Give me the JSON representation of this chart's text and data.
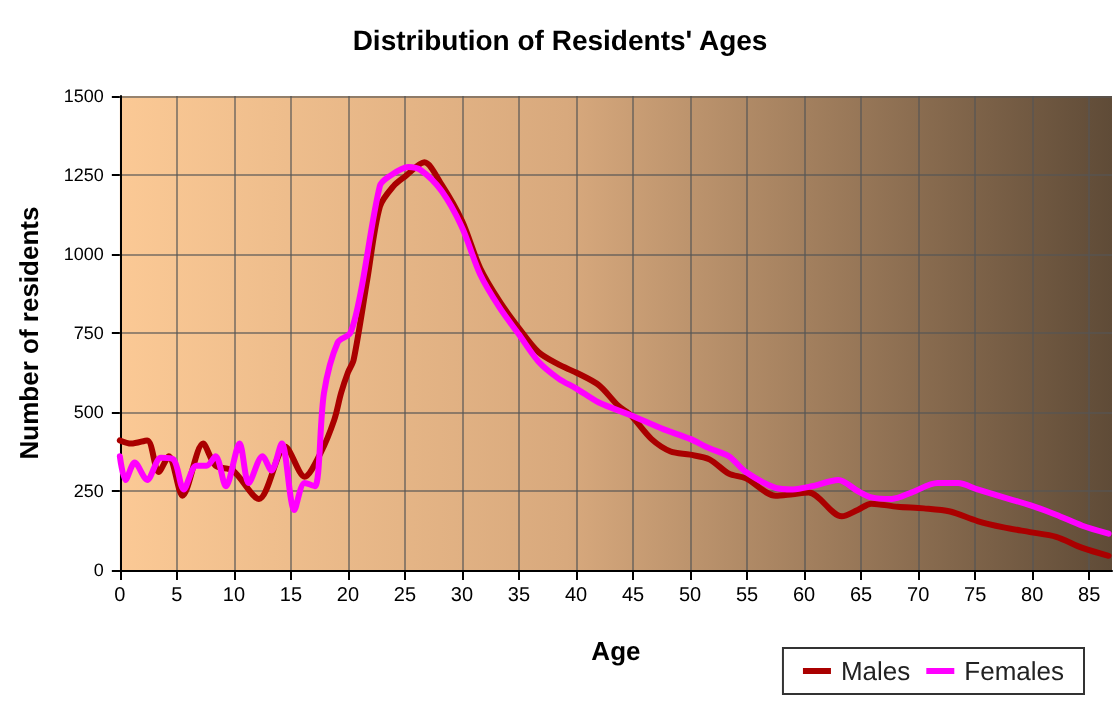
{
  "chart_data": {
    "type": "line",
    "title": "Distribution of Residents' Ages",
    "xlabel": "Age",
    "ylabel": "Number of residents",
    "xlim": [
      0,
      87
    ],
    "xticks": [
      0,
      5,
      10,
      15,
      20,
      25,
      30,
      35,
      40,
      45,
      50,
      55,
      60,
      65,
      70,
      75,
      80,
      85
    ],
    "ylim": [
      0,
      1500
    ],
    "yticks": [
      0,
      250,
      500,
      750,
      1000,
      1250,
      1500
    ],
    "grid": true,
    "legend": "bottom right",
    "marker": "none",
    "line_style": "solid",
    "series": [
      {
        "name": "Males",
        "color": "#aa0000",
        "x": [
          0,
          1,
          2.4,
          3.4,
          4.3,
          5.5,
          7.3,
          8.4,
          9.9,
          12.2,
          14.5,
          16.2,
          17.6,
          18.8,
          19.4,
          20,
          20.5,
          21.7,
          22.8,
          24,
          25,
          26.7,
          28.2,
          30,
          31.6,
          33.3,
          35,
          36.7,
          38.5,
          40,
          42,
          43.7,
          44.8,
          46.6,
          48.3,
          50,
          51.7,
          53.4,
          54.9,
          57.5,
          59,
          60.4,
          63.3,
          64.7,
          65.9,
          68.2,
          70.5,
          72.8,
          75.2,
          77.5,
          79.8,
          82.1,
          84.4,
          86.7
        ],
        "values": [
          410,
          400,
          410,
          310,
          360,
          235,
          400,
          330,
          315,
          225,
          390,
          295,
          370,
          475,
          560,
          625,
          665,
          920,
          1150,
          1215,
          1245,
          1290,
          1220,
          1105,
          955,
          850,
          765,
          690,
          650,
          625,
          585,
          520,
          490,
          415,
          375,
          365,
          350,
          305,
          290,
          235,
          240,
          245,
          170,
          190,
          210,
          200,
          195,
          185,
          155,
          135,
          120,
          105,
          70,
          45
        ]
      },
      {
        "name": "Females",
        "color": "#ff00ff",
        "x": [
          0,
          0.5,
          1.3,
          2.4,
          3.6,
          4.7,
          5.6,
          6.7,
          7.6,
          8.4,
          9.3,
          10.5,
          11.3,
          12.5,
          13.3,
          14.2,
          15.3,
          16.2,
          17.1,
          17.9,
          19.1,
          20.2,
          21.1,
          22.8,
          23.6,
          25.3,
          26.4,
          28.2,
          30,
          31.6,
          33.3,
          35,
          36.7,
          38.5,
          40,
          42,
          44.8,
          47.7,
          50,
          51.7,
          53.4,
          54.9,
          57.5,
          59,
          60.7,
          63,
          64.7,
          65.9,
          67.7,
          69.4,
          71.7,
          73.5,
          75.2,
          77.5,
          79.8,
          82.1,
          84.4,
          86.7
        ],
        "values": [
          360,
          285,
          340,
          285,
          355,
          350,
          255,
          330,
          330,
          360,
          265,
          400,
          275,
          360,
          315,
          400,
          190,
          275,
          265,
          560,
          720,
          750,
          875,
          1215,
          1245,
          1275,
          1265,
          1200,
          1085,
          935,
          830,
          745,
          660,
          605,
          575,
          530,
          490,
          445,
          415,
          385,
          360,
          310,
          260,
          255,
          265,
          285,
          250,
          230,
          225,
          245,
          275,
          275,
          255,
          230,
          205,
          175,
          140,
          115
        ]
      }
    ]
  }
}
